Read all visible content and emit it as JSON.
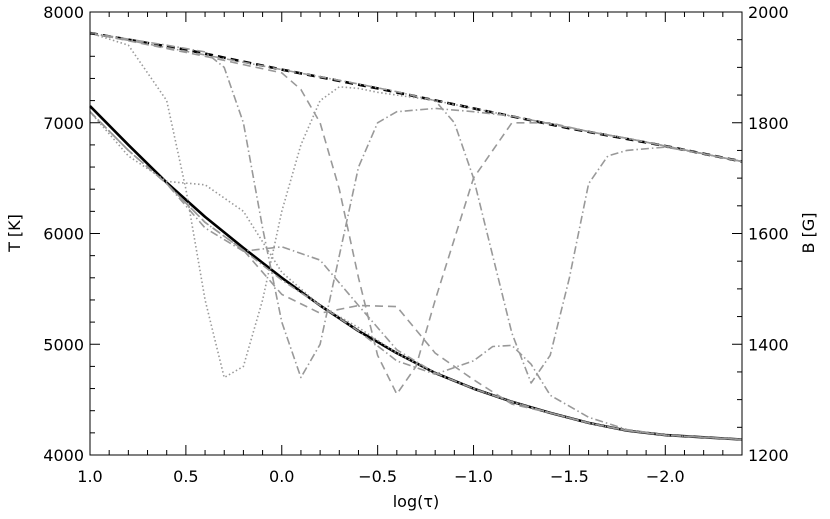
{
  "chart_data": {
    "type": "line",
    "title": "",
    "xlabel": "log(τ)",
    "ylabel_left": "T [K]",
    "ylabel_right": "B [G]",
    "xlim": [
      1.0,
      -2.4
    ],
    "ylim_left": [
      4000,
      8000
    ],
    "ylim_right": [
      1200,
      2000
    ],
    "x_ticks": [
      1.0,
      0.5,
      0.0,
      -0.5,
      -1.0,
      -1.5,
      -2.0
    ],
    "x_tick_labels": [
      "1.0",
      "0.5",
      "0.0",
      "−0.5",
      "−1.0",
      "−1.5",
      "−2.0"
    ],
    "y_left_ticks": [
      4000,
      5000,
      6000,
      7000,
      8000
    ],
    "y_left_tick_labels": [
      "4000",
      "5000",
      "6000",
      "7000",
      "8000"
    ],
    "y_right_ticks": [
      1200,
      1400,
      1600,
      1800,
      2000
    ],
    "y_right_tick_labels": [
      "1200",
      "1400",
      "1600",
      "1800",
      "2000"
    ],
    "grid": false,
    "series": [
      {
        "axis": "left",
        "color": "#000000",
        "style": "solid",
        "x": [
          1.0,
          0.8,
          0.6,
          0.4,
          0.2,
          0.0,
          -0.2,
          -0.4,
          -0.6,
          -0.8,
          -1.0,
          -1.2,
          -1.4,
          -1.6,
          -1.8,
          -2.0,
          -2.2,
          -2.4
        ],
        "y": [
          7150,
          6800,
          6460,
          6150,
          5870,
          5600,
          5350,
          5120,
          4920,
          4740,
          4600,
          4480,
          4380,
          4290,
          4220,
          4180,
          4160,
          4140
        ]
      },
      {
        "axis": "right",
        "color": "#000000",
        "style": "dashed",
        "x": [
          1.0,
          0.5,
          0.0,
          -0.5,
          -1.0,
          -1.5,
          -2.0,
          -2.4
        ],
        "y": [
          1962,
          1932,
          1896,
          1862,
          1826,
          1790,
          1758,
          1730
        ]
      },
      {
        "axis": "right",
        "color": "#999999",
        "style": "dotted",
        "x": [
          1.0,
          0.8,
          0.6,
          0.5,
          0.4,
          0.3,
          0.2,
          0.1,
          0.0,
          -0.1,
          -0.2,
          -0.3,
          -0.4,
          -0.5,
          -0.6,
          -0.7,
          -0.8,
          -1.0,
          -1.2,
          -1.4,
          -1.6,
          -1.8,
          -2.0,
          -2.2,
          -2.4
        ],
        "y": [
          1962,
          1940,
          1840,
          1680,
          1480,
          1340,
          1360,
          1480,
          1640,
          1760,
          1840,
          1865,
          1862,
          1855,
          1850,
          1845,
          1840,
          1826,
          1812,
          1798,
          1784,
          1772,
          1758,
          1744,
          1730
        ]
      },
      {
        "axis": "right",
        "color": "#999999",
        "style": "dashdot",
        "x": [
          1.0,
          0.6,
          0.4,
          0.3,
          0.2,
          0.1,
          0.0,
          -0.1,
          -0.2,
          -0.3,
          -0.4,
          -0.5,
          -0.6,
          -0.8,
          -1.0,
          -1.2,
          -1.4,
          -1.6,
          -1.8,
          -2.0,
          -2.2,
          -2.4
        ],
        "y": [
          1962,
          1940,
          1928,
          1900,
          1800,
          1610,
          1440,
          1340,
          1400,
          1560,
          1720,
          1800,
          1820,
          1826,
          1820,
          1812,
          1798,
          1784,
          1772,
          1758,
          1744,
          1730
        ]
      },
      {
        "axis": "right",
        "color": "#999999",
        "style": "dashed",
        "x": [
          1.0,
          0.4,
          0.2,
          0.0,
          -0.1,
          -0.2,
          -0.3,
          -0.4,
          -0.5,
          -0.6,
          -0.7,
          -0.8,
          -1.0,
          -1.2,
          -1.4,
          -1.6,
          -1.8,
          -2.0,
          -2.2,
          -2.4
        ],
        "y": [
          1962,
          1920,
          1905,
          1890,
          1860,
          1800,
          1680,
          1520,
          1380,
          1310,
          1360,
          1480,
          1700,
          1800,
          1800,
          1784,
          1772,
          1758,
          1744,
          1730
        ]
      },
      {
        "axis": "right",
        "color": "#999999",
        "style": "dashdot",
        "x": [
          1.0,
          0.0,
          -0.4,
          -0.6,
          -0.8,
          -0.9,
          -1.0,
          -1.1,
          -1.2,
          -1.3,
          -1.4,
          -1.5,
          -1.6,
          -1.7,
          -1.8,
          -2.0,
          -2.2,
          -2.4
        ],
        "y": [
          1962,
          1896,
          1870,
          1856,
          1840,
          1800,
          1700,
          1560,
          1420,
          1330,
          1380,
          1520,
          1690,
          1740,
          1750,
          1756,
          1744,
          1730
        ]
      },
      {
        "axis": "left",
        "color": "#999999",
        "style": "dotted",
        "x": [
          1.0,
          0.8,
          0.6,
          0.4,
          0.2,
          0.0,
          -0.2,
          -0.4,
          -0.6,
          -0.8,
          -1.0,
          -1.2,
          -1.4,
          -1.6,
          -1.8,
          -2.0,
          -2.2,
          -2.4
        ],
        "y": [
          7100,
          6700,
          6470,
          6440,
          6200,
          5650,
          5350,
          5150,
          4920,
          4740,
          4600,
          4480,
          4380,
          4290,
          4220,
          4180,
          4160,
          4140
        ]
      },
      {
        "axis": "left",
        "color": "#999999",
        "style": "dashdot",
        "x": [
          1.0,
          0.8,
          0.6,
          0.4,
          0.2,
          0.0,
          -0.2,
          -0.4,
          -0.6,
          -0.8,
          -1.0,
          -1.2,
          -1.4,
          -1.6,
          -1.8,
          -2.0,
          -2.2,
          -2.4
        ],
        "y": [
          7100,
          6750,
          6450,
          6050,
          5840,
          5880,
          5760,
          5350,
          4950,
          4740,
          4600,
          4480,
          4380,
          4290,
          4220,
          4180,
          4160,
          4140
        ]
      },
      {
        "axis": "left",
        "color": "#999999",
        "style": "dashed",
        "x": [
          1.0,
          0.8,
          0.6,
          0.4,
          0.2,
          0.0,
          -0.2,
          -0.4,
          -0.6,
          -0.8,
          -1.0,
          -1.2,
          -1.4,
          -1.6,
          -1.8,
          -2.0,
          -2.2,
          -2.4
        ],
        "y": [
          7100,
          6750,
          6450,
          6100,
          5850,
          5450,
          5280,
          5350,
          5340,
          4920,
          4680,
          4460,
          4380,
          4290,
          4220,
          4180,
          4160,
          4140
        ]
      },
      {
        "axis": "left",
        "color": "#999999",
        "style": "dashdot",
        "x": [
          1.0,
          0.8,
          0.6,
          0.4,
          0.2,
          0.0,
          -0.2,
          -0.4,
          -0.6,
          -0.8,
          -1.0,
          -1.1,
          -1.2,
          -1.3,
          -1.4,
          -1.6,
          -1.8,
          -2.0,
          -2.2,
          -2.4
        ],
        "y": [
          7100,
          6750,
          6450,
          6100,
          5850,
          5580,
          5350,
          5120,
          4850,
          4730,
          4850,
          4980,
          4990,
          4820,
          4540,
          4340,
          4230,
          4180,
          4160,
          4140
        ]
      }
    ]
  }
}
